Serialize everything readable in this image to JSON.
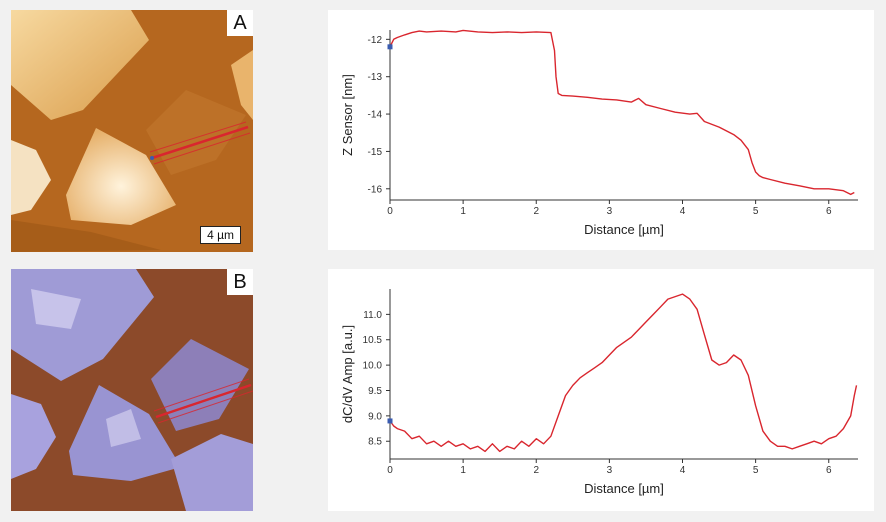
{
  "images": [
    {
      "label": "A",
      "scale_bar": "4 µm",
      "colormap": "copper height map"
    },
    {
      "label": "B",
      "colormap": "brown / lavender dC/dV amplitude map"
    }
  ],
  "colors": {
    "line": "#d9262e",
    "marker": "#3a5bb0",
    "background": "#f1f1f1"
  },
  "chart_data": [
    {
      "type": "line",
      "xlabel": "Distance [µm]",
      "ylabel": "Z Sensor [nm]",
      "xlim": [
        0,
        6.4
      ],
      "ylim": [
        -16.3,
        -11.75
      ],
      "xticks": [
        0,
        1,
        2,
        3,
        4,
        5,
        6
      ],
      "xtick_labels": [
        "0",
        "1",
        "2",
        "3",
        "4",
        "5",
        "6"
      ],
      "yticks": [
        -12,
        -13,
        -14,
        -15,
        -16
      ],
      "ytick_labels": [
        "-12",
        "-13",
        "-14",
        "-15",
        "-16"
      ],
      "series": [
        {
          "x": [
            0,
            0.05,
            0.1,
            0.2,
            0.3,
            0.4,
            0.5,
            0.7,
            0.9,
            1.0,
            1.2,
            1.4,
            1.6,
            1.8,
            2.0,
            2.2,
            2.25,
            2.27,
            2.3,
            2.35,
            2.5,
            2.7,
            2.9,
            3.1,
            3.3,
            3.4,
            3.5,
            3.7,
            3.9,
            4.1,
            4.2,
            4.3,
            4.5,
            4.7,
            4.8,
            4.9,
            4.95,
            5.0,
            5.05,
            5.1,
            5.2,
            5.4,
            5.6,
            5.8,
            6.0,
            6.2,
            6.3,
            6.35
          ],
          "y": [
            -12.2,
            -12.0,
            -11.95,
            -11.88,
            -11.82,
            -11.78,
            -11.8,
            -11.78,
            -11.8,
            -11.76,
            -11.8,
            -11.82,
            -11.8,
            -11.82,
            -11.8,
            -11.82,
            -12.3,
            -13.0,
            -13.45,
            -13.5,
            -13.52,
            -13.55,
            -13.6,
            -13.62,
            -13.68,
            -13.58,
            -13.75,
            -13.85,
            -13.95,
            -14.0,
            -13.98,
            -14.2,
            -14.35,
            -14.55,
            -14.7,
            -14.95,
            -15.3,
            -15.55,
            -15.65,
            -15.7,
            -15.75,
            -15.85,
            -15.92,
            -16.0,
            -16.0,
            -16.05,
            -16.15,
            -16.1
          ]
        }
      ]
    },
    {
      "type": "line",
      "xlabel": "Distance [µm]",
      "ylabel": "dC/dV Amp [a.u.]",
      "xlim": [
        0,
        6.4
      ],
      "ylim": [
        8.15,
        11.5
      ],
      "xticks": [
        0,
        1,
        2,
        3,
        4,
        5,
        6
      ],
      "xtick_labels": [
        "0",
        "1",
        "2",
        "3",
        "4",
        "5",
        "6"
      ],
      "yticks": [
        8.5,
        9.0,
        9.5,
        10.0,
        10.5,
        11.0
      ],
      "ytick_labels": [
        "8.5",
        "9.0",
        "9.5",
        "10.0",
        "10.5",
        "11.0"
      ],
      "series": [
        {
          "x": [
            0,
            0.05,
            0.1,
            0.2,
            0.3,
            0.4,
            0.5,
            0.6,
            0.7,
            0.8,
            0.9,
            1.0,
            1.1,
            1.2,
            1.3,
            1.4,
            1.5,
            1.6,
            1.7,
            1.8,
            1.9,
            2.0,
            2.1,
            2.2,
            2.3,
            2.4,
            2.5,
            2.6,
            2.7,
            2.8,
            2.9,
            3.0,
            3.1,
            3.2,
            3.3,
            3.4,
            3.5,
            3.6,
            3.7,
            3.8,
            3.9,
            4.0,
            4.1,
            4.2,
            4.3,
            4.4,
            4.5,
            4.6,
            4.7,
            4.8,
            4.9,
            5.0,
            5.1,
            5.2,
            5.3,
            5.4,
            5.5,
            5.6,
            5.7,
            5.8,
            5.9,
            6.0,
            6.1,
            6.2,
            6.3,
            6.35,
            6.38
          ],
          "y": [
            8.9,
            8.8,
            8.75,
            8.7,
            8.55,
            8.6,
            8.45,
            8.5,
            8.4,
            8.5,
            8.4,
            8.45,
            8.35,
            8.4,
            8.3,
            8.45,
            8.3,
            8.4,
            8.35,
            8.5,
            8.4,
            8.55,
            8.45,
            8.6,
            9.0,
            9.4,
            9.6,
            9.75,
            9.85,
            9.95,
            10.05,
            10.2,
            10.35,
            10.45,
            10.55,
            10.7,
            10.85,
            11.0,
            11.15,
            11.3,
            11.35,
            11.4,
            11.3,
            11.1,
            10.6,
            10.1,
            10.0,
            10.05,
            10.2,
            10.1,
            9.8,
            9.2,
            8.7,
            8.5,
            8.4,
            8.4,
            8.35,
            8.4,
            8.45,
            8.5,
            8.45,
            8.55,
            8.6,
            8.75,
            9.0,
            9.4,
            9.6
          ]
        }
      ]
    }
  ]
}
